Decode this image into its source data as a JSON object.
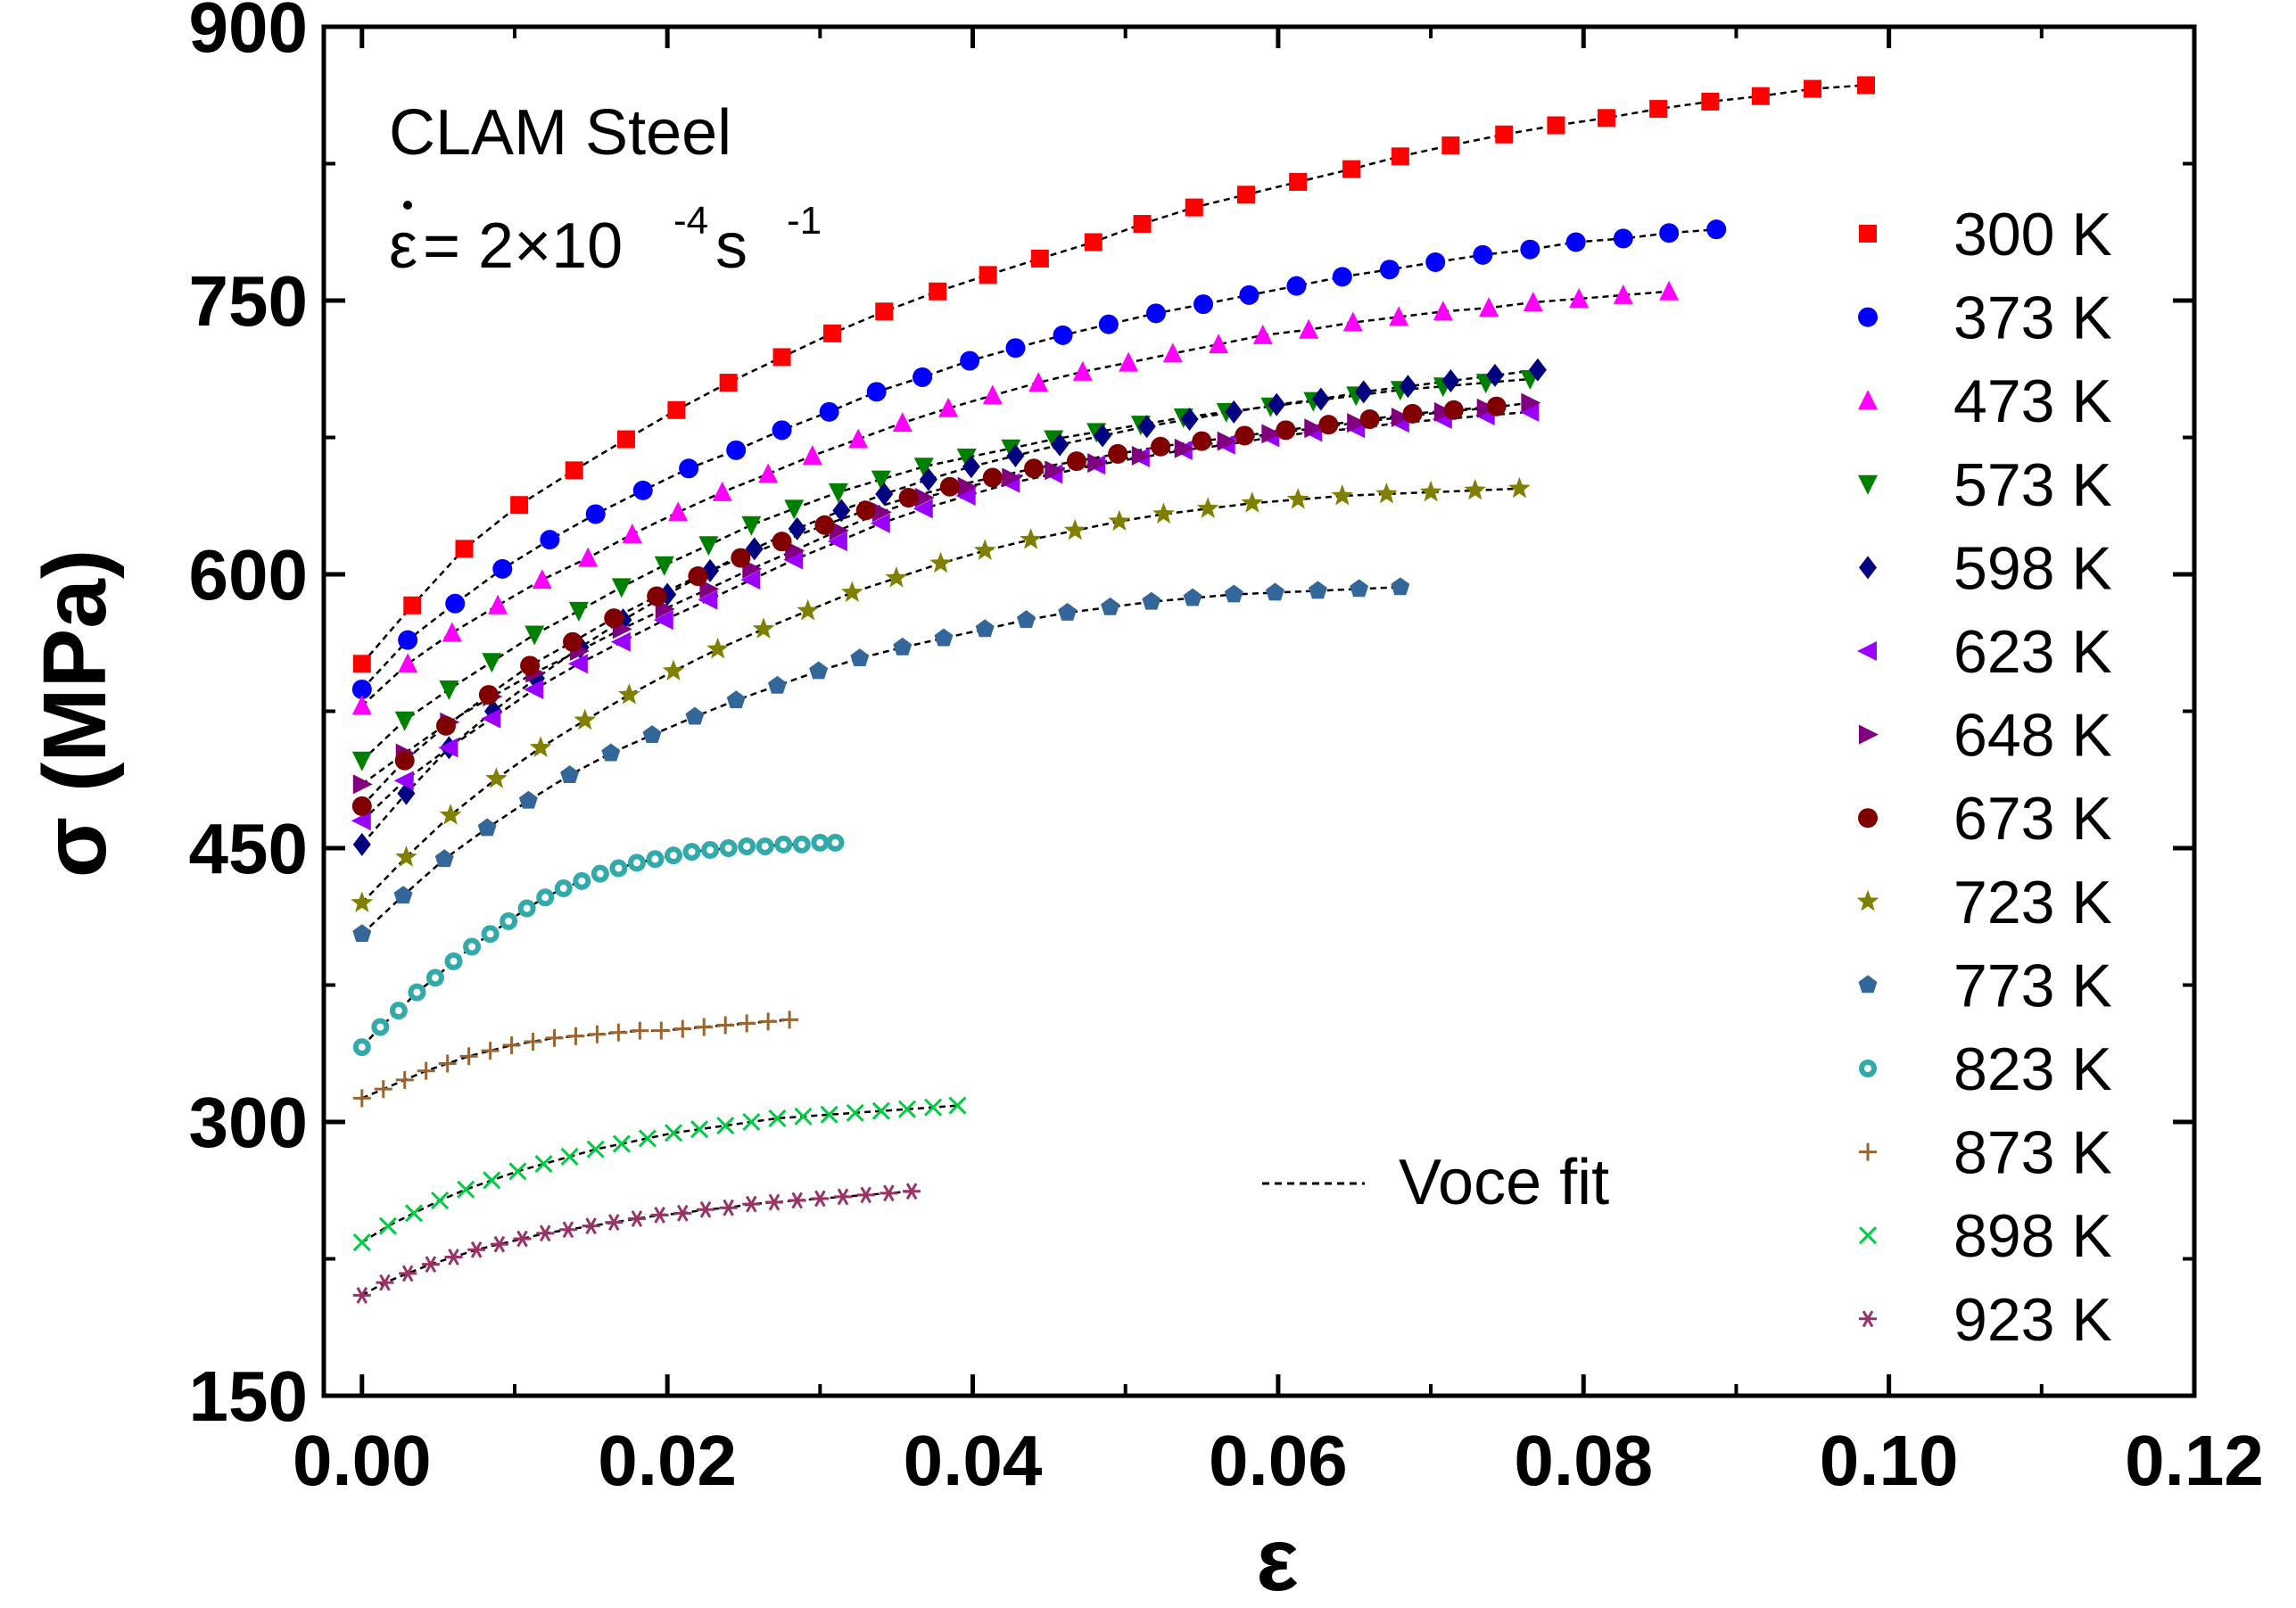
{
  "chart_data": {
    "type": "scatter",
    "title": "",
    "xlabel": "ε",
    "ylabel": "σ (MPa)",
    "xlim": [
      -0.0025,
      0.12
    ],
    "ylim": [
      150,
      900
    ],
    "xticks": [
      "0.00",
      "0.02",
      "0.04",
      "0.06",
      "0.08",
      "0.10",
      "0.12"
    ],
    "yticks": [
      "150",
      "300",
      "450",
      "600",
      "750",
      "900"
    ],
    "grid": false,
    "legend_position": "right",
    "annotation": {
      "material": "CLAM Steel",
      "rate_symbol": "ε",
      "rate_text": " = 2×10",
      "rate_exp": "-4",
      "rate_unit": " s",
      "rate_unit_exp": "-1"
    },
    "fit_label": "Voce fit",
    "series": [
      {
        "name": "300 K",
        "color": "#ff0000",
        "marker": "square",
        "x": [
          0.0,
          0.0033,
          0.0067,
          0.0103,
          0.0139,
          0.0173,
          0.0206,
          0.024,
          0.0275,
          0.0308,
          0.0342,
          0.0377,
          0.041,
          0.0444,
          0.0479,
          0.0511,
          0.0545,
          0.0579,
          0.0613,
          0.0648,
          0.068,
          0.0713,
          0.0748,
          0.0782,
          0.0815,
          0.0849,
          0.0883,
          0.0916,
          0.095,
          0.0985
        ],
        "y": [
          551,
          583,
          614,
          638,
          657,
          674,
          690,
          705,
          719,
          732,
          744,
          755,
          764,
          773,
          782,
          792,
          801,
          808,
          815,
          822,
          829,
          835,
          841,
          846,
          850,
          855,
          859,
          862,
          866,
          868
        ]
      },
      {
        "name": "373 K",
        "color": "#0000ff",
        "marker": "circle",
        "x": [
          0.0,
          0.003,
          0.0061,
          0.0092,
          0.0123,
          0.0153,
          0.0184,
          0.0214,
          0.0245,
          0.0275,
          0.0306,
          0.0337,
          0.0367,
          0.0398,
          0.0428,
          0.0459,
          0.0489,
          0.052,
          0.0551,
          0.0581,
          0.0612,
          0.0642,
          0.0673,
          0.0703,
          0.0734,
          0.0765,
          0.0795,
          0.0826,
          0.0856,
          0.0887
        ],
        "y": [
          537,
          564,
          584,
          603,
          619,
          633,
          646,
          658,
          668,
          679,
          689,
          700,
          708,
          717,
          724,
          731,
          737,
          743,
          748,
          753,
          758,
          763,
          767,
          771,
          775,
          778,
          782,
          784,
          787,
          789
        ]
      },
      {
        "name": "473 K",
        "color": "#ff00ff",
        "marker": "triangle-up",
        "x": [
          0.0,
          0.003,
          0.0059,
          0.0089,
          0.0118,
          0.0148,
          0.0177,
          0.0207,
          0.0236,
          0.0266,
          0.0295,
          0.0325,
          0.0354,
          0.0384,
          0.0413,
          0.0443,
          0.0472,
          0.0502,
          0.0531,
          0.0561,
          0.059,
          0.062,
          0.0649,
          0.0679,
          0.0708,
          0.0738,
          0.0767,
          0.0797,
          0.0826,
          0.0856
        ],
        "y": [
          528,
          551,
          568,
          583,
          597,
          609,
          622,
          634,
          645,
          655,
          665,
          674,
          683,
          691,
          698,
          705,
          711,
          716,
          721,
          726,
          731,
          734,
          738,
          741,
          744,
          746,
          749,
          751,
          753,
          755
        ]
      },
      {
        "name": "573 K",
        "color": "#008000",
        "marker": "triangle-down",
        "x": [
          0.0,
          0.0028,
          0.0057,
          0.0085,
          0.0113,
          0.0142,
          0.017,
          0.0198,
          0.0227,
          0.0255,
          0.0283,
          0.0312,
          0.034,
          0.0368,
          0.0396,
          0.0425,
          0.0453,
          0.0481,
          0.051,
          0.0538,
          0.0566,
          0.0595,
          0.0623,
          0.0651,
          0.068,
          0.0708,
          0.0736,
          0.0765
        ],
        "y": [
          498,
          520,
          537,
          552,
          567,
          580,
          593,
          605,
          616,
          627,
          636,
          645,
          652,
          659,
          664,
          669,
          674,
          678,
          682,
          686,
          689,
          692,
          695,
          698,
          701,
          703,
          705,
          707
        ]
      },
      {
        "name": "598 K",
        "color": "#000080",
        "marker": "diamond",
        "x": [
          0.0,
          0.0029,
          0.0057,
          0.0086,
          0.0114,
          0.0143,
          0.0171,
          0.02,
          0.0228,
          0.0257,
          0.0285,
          0.0314,
          0.0342,
          0.0371,
          0.0399,
          0.0428,
          0.0457,
          0.0485,
          0.0514,
          0.0542,
          0.0571,
          0.0599,
          0.0628,
          0.0656,
          0.0685,
          0.0713,
          0.0742,
          0.077
        ],
        "y": [
          452,
          480,
          505,
          525,
          543,
          560,
          575,
          589,
          602,
          614,
          625,
          635,
          644,
          652,
          659,
          665,
          671,
          676,
          681,
          685,
          689,
          693,
          696,
          700,
          703,
          706,
          709,
          712
        ]
      },
      {
        "name": "623 K",
        "color": "#9900ff",
        "marker": "triangle-left",
        "x": [
          0.0,
          0.0028,
          0.0057,
          0.0085,
          0.0113,
          0.0142,
          0.017,
          0.0198,
          0.0227,
          0.0255,
          0.0283,
          0.0312,
          0.034,
          0.0368,
          0.0396,
          0.0425,
          0.0453,
          0.0481,
          0.051,
          0.0538,
          0.0566,
          0.0595,
          0.0623,
          0.0651,
          0.068,
          0.0708,
          0.0736,
          0.0765
        ],
        "y": [
          465,
          487,
          505,
          521,
          537,
          551,
          563,
          575,
          586,
          597,
          608,
          618,
          628,
          636,
          643,
          650,
          655,
          660,
          664,
          668,
          671,
          675,
          678,
          680,
          683,
          685,
          687,
          689
        ]
      },
      {
        "name": "648 K",
        "color": "#800080",
        "marker": "triangle-right",
        "x": [
          0.0,
          0.0028,
          0.0057,
          0.0085,
          0.0113,
          0.0142,
          0.017,
          0.0198,
          0.0227,
          0.0255,
          0.0283,
          0.0312,
          0.034,
          0.0368,
          0.0396,
          0.0425,
          0.0453,
          0.0481,
          0.051,
          0.0538,
          0.0566,
          0.0595,
          0.0623,
          0.0651,
          0.068,
          0.0708,
          0.0736,
          0.0765
        ],
        "y": [
          485,
          502,
          519,
          533,
          546,
          558,
          570,
          581,
          592,
          603,
          613,
          624,
          634,
          642,
          648,
          653,
          657,
          661,
          665,
          669,
          673,
          677,
          680,
          683,
          686,
          689,
          691,
          694
        ]
      },
      {
        "name": "673 K",
        "color": "#800000",
        "marker": "circle",
        "x": [
          0.0,
          0.0028,
          0.0055,
          0.0083,
          0.011,
          0.0138,
          0.0165,
          0.0193,
          0.022,
          0.0248,
          0.0275,
          0.0303,
          0.033,
          0.0358,
          0.0385,
          0.0413,
          0.044,
          0.0468,
          0.0495,
          0.0523,
          0.055,
          0.0578,
          0.0605,
          0.0633,
          0.066,
          0.0688,
          0.0715,
          0.0743
        ],
        "y": [
          473,
          498,
          517,
          534,
          550,
          563,
          576,
          588,
          599,
          609,
          618,
          627,
          635,
          642,
          648,
          653,
          658,
          662,
          666,
          670,
          673,
          676,
          679,
          682,
          685,
          688,
          690,
          692
        ]
      },
      {
        "name": "723 K",
        "color": "#808000",
        "marker": "star",
        "x": [
          0.0,
          0.0029,
          0.0058,
          0.0088,
          0.0117,
          0.0146,
          0.0175,
          0.0204,
          0.0233,
          0.0263,
          0.0292,
          0.0321,
          0.035,
          0.0379,
          0.0408,
          0.0438,
          0.0467,
          0.0496,
          0.0525,
          0.0554,
          0.0583,
          0.0613,
          0.0642,
          0.0671,
          0.07,
          0.0729,
          0.0758
        ],
        "y": [
          420,
          445,
          468,
          488,
          505,
          520,
          534,
          547,
          559,
          570,
          580,
          590,
          598,
          606,
          613,
          619,
          624,
          629,
          633,
          636,
          639,
          641,
          643,
          644,
          645,
          646,
          647
        ]
      },
      {
        "name": "773 K",
        "color": "#336699",
        "marker": "pentagon",
        "x": [
          0.0,
          0.0027,
          0.0054,
          0.0082,
          0.0109,
          0.0136,
          0.0163,
          0.019,
          0.0218,
          0.0245,
          0.0272,
          0.0299,
          0.0326,
          0.0354,
          0.0381,
          0.0408,
          0.0435,
          0.0462,
          0.049,
          0.0517,
          0.0544,
          0.0571,
          0.0598,
          0.0626,
          0.0653,
          0.068
        ],
        "y": [
          403,
          424,
          444,
          461,
          476,
          490,
          502,
          512,
          522,
          531,
          539,
          547,
          554,
          560,
          565,
          570,
          575,
          579,
          582,
          585,
          587,
          589,
          590,
          591,
          592,
          593
        ]
      },
      {
        "name": "823 K",
        "color": "#33aaaa",
        "marker": "circle-hollow",
        "x": [
          0.0,
          0.0012,
          0.0024,
          0.0036,
          0.0048,
          0.006,
          0.0072,
          0.0084,
          0.0096,
          0.0108,
          0.012,
          0.0132,
          0.0144,
          0.0156,
          0.0168,
          0.018,
          0.0192,
          0.0204,
          0.0216,
          0.0228,
          0.024,
          0.0252,
          0.0264,
          0.0276,
          0.0288,
          0.03,
          0.031
        ],
        "y": [
          341,
          352,
          361,
          371,
          379,
          388,
          396,
          403,
          410,
          417,
          423,
          428,
          432,
          436,
          439,
          442,
          444,
          446,
          448,
          449,
          450,
          451,
          451,
          452,
          452,
          453,
          453
        ]
      },
      {
        "name": "873 K",
        "color": "#996633",
        "marker": "plus",
        "x": [
          0.0,
          0.0014,
          0.0028,
          0.0042,
          0.0056,
          0.007,
          0.0084,
          0.0098,
          0.0112,
          0.0126,
          0.014,
          0.0154,
          0.0168,
          0.0182,
          0.0196,
          0.021,
          0.0224,
          0.0238,
          0.0252,
          0.0266,
          0.028
        ],
        "y": [
          313,
          318,
          323,
          328,
          332,
          336,
          339,
          342,
          344,
          346,
          347,
          348,
          349,
          350,
          350,
          351,
          352,
          353,
          354,
          355,
          356
        ]
      },
      {
        "name": "898 K",
        "color": "#00cc44",
        "marker": "cross",
        "x": [
          0.0,
          0.0017,
          0.0034,
          0.0051,
          0.0068,
          0.0085,
          0.0102,
          0.0119,
          0.0136,
          0.0153,
          0.017,
          0.0187,
          0.0204,
          0.0221,
          0.0238,
          0.0255,
          0.0272,
          0.0289,
          0.0306,
          0.0323,
          0.034,
          0.0357,
          0.0374,
          0.039
        ],
        "y": [
          234,
          243,
          250,
          257,
          263,
          268,
          273,
          277,
          281,
          285,
          288,
          291,
          294,
          296,
          298,
          300,
          302,
          303,
          304,
          305,
          306,
          307,
          308,
          309
        ]
      },
      {
        "name": "923 K",
        "color": "#993366",
        "marker": "asterisk",
        "x": [
          0.0,
          0.0015,
          0.003,
          0.0045,
          0.006,
          0.0075,
          0.009,
          0.0105,
          0.012,
          0.0135,
          0.015,
          0.0165,
          0.018,
          0.0195,
          0.021,
          0.0225,
          0.024,
          0.0255,
          0.027,
          0.0285,
          0.03,
          0.0315,
          0.033,
          0.0345,
          0.036
        ],
        "y": [
          205,
          212,
          217,
          222,
          226,
          230,
          233,
          236,
          239,
          241,
          243,
          245,
          247,
          249,
          250,
          252,
          253,
          255,
          256,
          257,
          258,
          259,
          260,
          261,
          262
        ]
      }
    ]
  }
}
